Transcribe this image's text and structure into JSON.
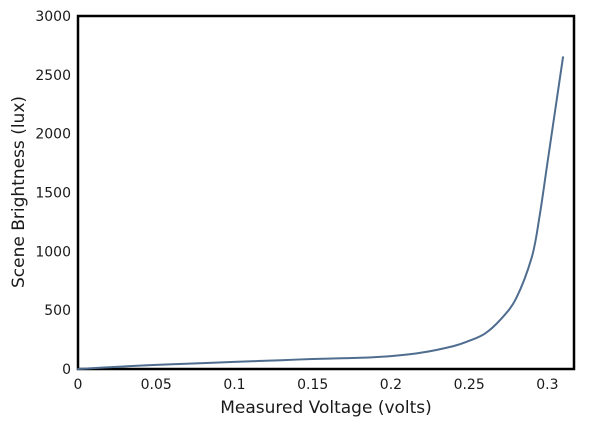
{
  "chart_data": {
    "type": "line",
    "title": "",
    "xlabel": "Measured Voltage (volts)",
    "ylabel": "Scene Brightness (lux)",
    "xlim": [
      0,
      0.317
    ],
    "ylim": [
      0,
      3000
    ],
    "x_ticks": [
      0,
      0.05,
      0.1,
      0.15,
      0.2,
      0.25,
      0.3
    ],
    "x_tick_labels": [
      "0",
      "0.05",
      "0.1",
      "0.15",
      "0.2",
      "0.25",
      "0.3"
    ],
    "y_ticks": [
      0,
      500,
      1000,
      1500,
      2000,
      2500,
      3000
    ],
    "y_tick_labels": [
      "0",
      "500",
      "1000",
      "1500",
      "2000",
      "2500",
      "3000"
    ],
    "grid": false,
    "line_color": "#4f6d8f",
    "series": [
      {
        "x": [
          0,
          0.02,
          0.05,
          0.08,
          0.1,
          0.13,
          0.15,
          0.18,
          0.2,
          0.22,
          0.24,
          0.25,
          0.26,
          0.27,
          0.28,
          0.29,
          0.295,
          0.3,
          0.305,
          0.31
        ],
        "y": [
          0,
          15,
          35,
          50,
          60,
          75,
          85,
          95,
          110,
          140,
          195,
          240,
          300,
          420,
          600,
          950,
          1300,
          1750,
          2200,
          2650
        ]
      }
    ]
  }
}
